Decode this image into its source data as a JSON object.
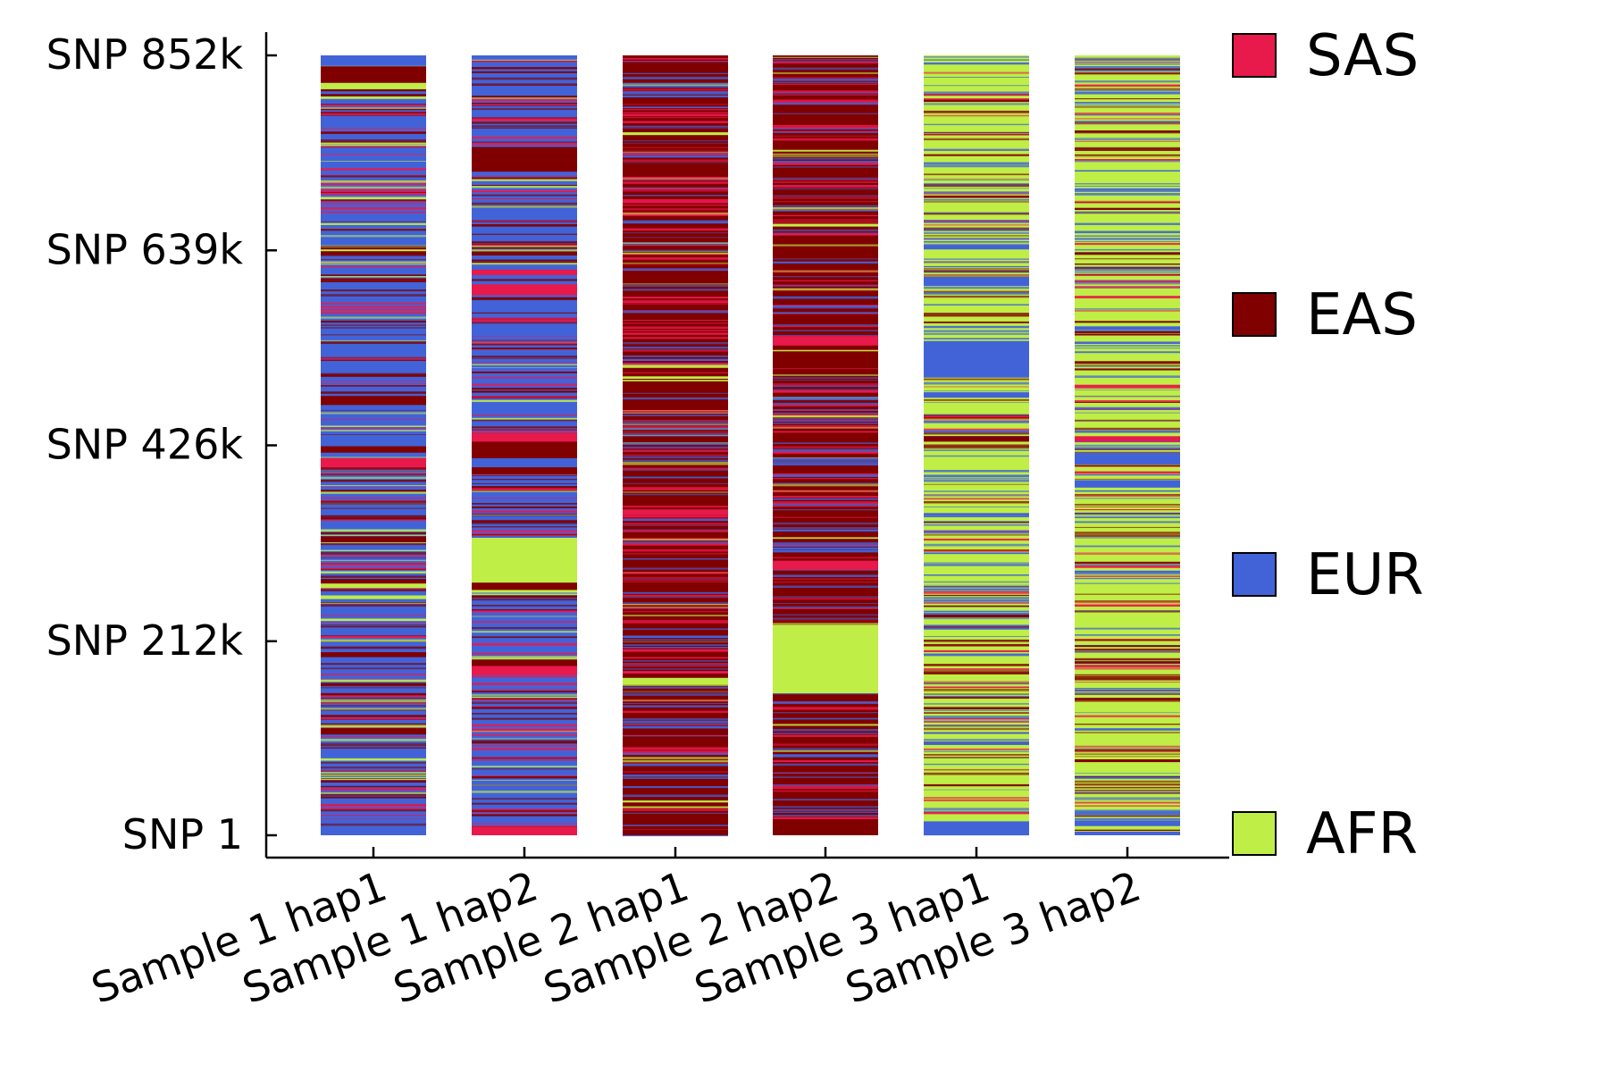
{
  "chart_data": {
    "type": "heatmap",
    "title": "",
    "xlabel": "",
    "ylabel": "",
    "categories": [
      "Sample 1 hap1",
      "Sample 1 hap2",
      "Sample 2 hap1",
      "Sample 2 hap2",
      "Sample 3 hap1",
      "Sample 3 hap2"
    ],
    "y_ticks": [
      {
        "label": "SNP 1",
        "value": 1
      },
      {
        "label": "SNP 212k",
        "value": 212000
      },
      {
        "label": "SNP 426k",
        "value": 426000
      },
      {
        "label": "SNP 639k",
        "value": 639000
      },
      {
        "label": "SNP 852k",
        "value": 852000
      }
    ],
    "ylim": [
      1,
      852000
    ],
    "legend_position": "right",
    "grid": false,
    "ancestries": [
      {
        "name": "SAS",
        "color": "#e8194b"
      },
      {
        "name": "EAS",
        "color": "#800000"
      },
      {
        "name": "EUR",
        "color": "#4263d8"
      },
      {
        "name": "AFR",
        "color": "#bfee46"
      }
    ],
    "haplotypes": [
      {
        "name": "Sample 1 hap1",
        "background": "EUR",
        "segments": [
          {
            "from": 1,
            "to": 6000,
            "ancestry": "EUR"
          },
          {
            "from": 110000,
            "to": 117000,
            "ancestry": "EAS"
          },
          {
            "from": 195000,
            "to": 200000,
            "ancestry": "EAS"
          },
          {
            "from": 258000,
            "to": 262000,
            "ancestry": "AFR"
          },
          {
            "from": 270000,
            "to": 278000,
            "ancestry": "AFR"
          },
          {
            "from": 275000,
            "to": 280000,
            "ancestry": "EAS"
          },
          {
            "from": 320000,
            "to": 326000,
            "ancestry": "EAS"
          },
          {
            "from": 402000,
            "to": 412000,
            "ancestry": "SAS"
          },
          {
            "from": 418000,
            "to": 425000,
            "ancestry": "EAS"
          },
          {
            "from": 470000,
            "to": 480000,
            "ancestry": "EAS"
          },
          {
            "from": 635000,
            "to": 642000,
            "ancestry": "EAS"
          },
          {
            "from": 638000,
            "to": 640000,
            "ancestry": "AFR"
          },
          {
            "from": 815000,
            "to": 822000,
            "ancestry": "AFR"
          },
          {
            "from": 822000,
            "to": 840000,
            "ancestry": "EAS"
          }
        ]
      },
      {
        "name": "Sample 1 hap2",
        "background": "EUR",
        "segments": [
          {
            "from": 1,
            "to": 9000,
            "ancestry": "SAS"
          },
          {
            "from": 175000,
            "to": 188000,
            "ancestry": "SAS"
          },
          {
            "from": 185000,
            "to": 192000,
            "ancestry": "EAS"
          },
          {
            "from": 265000,
            "to": 325000,
            "ancestry": "AFR"
          },
          {
            "from": 268000,
            "to": 276000,
            "ancestry": "EAS"
          },
          {
            "from": 395000,
            "to": 402000,
            "ancestry": "EAS"
          },
          {
            "from": 412000,
            "to": 440000,
            "ancestry": "EAS"
          },
          {
            "from": 430000,
            "to": 440000,
            "ancestry": "SAS"
          },
          {
            "from": 590000,
            "to": 602000,
            "ancestry": "SAS"
          },
          {
            "from": 612000,
            "to": 618000,
            "ancestry": "SAS"
          },
          {
            "from": 725000,
            "to": 752000,
            "ancestry": "EAS"
          }
        ]
      },
      {
        "name": "Sample 2 hap1",
        "background": "EAS",
        "segments": [
          {
            "from": 1,
            "to": 6000,
            "ancestry": "EAS"
          },
          {
            "from": 165000,
            "to": 172000,
            "ancestry": "AFR"
          },
          {
            "from": 350000,
            "to": 356000,
            "ancestry": "SAS"
          },
          {
            "from": 765000,
            "to": 768000,
            "ancestry": "AFR"
          }
        ]
      },
      {
        "name": "Sample 2 hap2",
        "background": "EAS",
        "segments": [
          {
            "from": 1,
            "to": 17000,
            "ancestry": "EAS"
          },
          {
            "from": 155000,
            "to": 230000,
            "ancestry": "AFR"
          },
          {
            "from": 290000,
            "to": 300000,
            "ancestry": "SAS"
          },
          {
            "from": 535000,
            "to": 545000,
            "ancestry": "SAS"
          },
          {
            "from": 665000,
            "to": 668000,
            "ancestry": "AFR"
          }
        ]
      },
      {
        "name": "Sample 3 hap1",
        "background": "AFR",
        "segments": [
          {
            "from": 1,
            "to": 15000,
            "ancestry": "EUR"
          },
          {
            "from": 238000,
            "to": 241000,
            "ancestry": "EAS"
          },
          {
            "from": 430000,
            "to": 436000,
            "ancestry": "EAS"
          },
          {
            "from": 478000,
            "to": 484000,
            "ancestry": "EUR"
          },
          {
            "from": 500000,
            "to": 540000,
            "ancestry": "EUR"
          },
          {
            "from": 600000,
            "to": 610000,
            "ancestry": "EUR"
          },
          {
            "from": 640000,
            "to": 645000,
            "ancestry": "EUR"
          }
        ]
      },
      {
        "name": "Sample 3 hap2",
        "background": "AFR",
        "segments": [
          {
            "from": 1,
            "to": 4000,
            "ancestry": "EUR"
          },
          {
            "from": 10000,
            "to": 16000,
            "ancestry": "EUR"
          },
          {
            "from": 80000,
            "to": 83000,
            "ancestry": "EAS"
          },
          {
            "from": 380000,
            "to": 388000,
            "ancestry": "EUR"
          },
          {
            "from": 405000,
            "to": 418000,
            "ancestry": "EUR"
          },
          {
            "from": 430000,
            "to": 436000,
            "ancestry": "SAS"
          },
          {
            "from": 552000,
            "to": 556000,
            "ancestry": "EUR"
          }
        ]
      }
    ]
  }
}
